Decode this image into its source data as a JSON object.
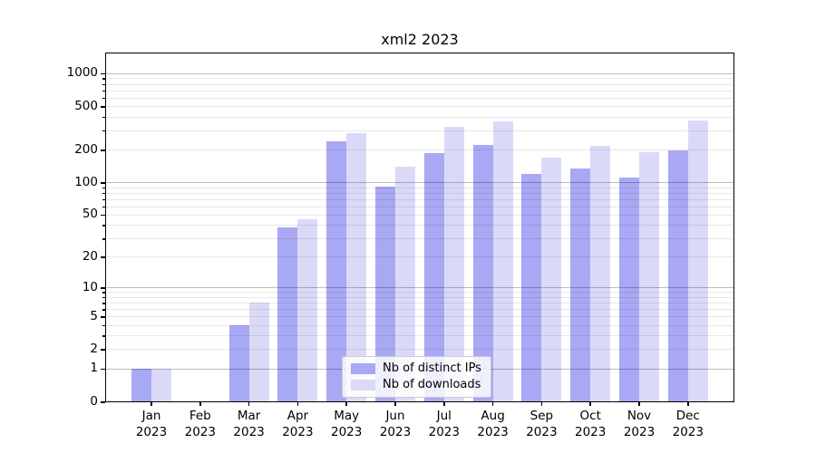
{
  "title": "xml2 2023",
  "colors": {
    "bar_distinct_ips": "#a8a8f4",
    "bar_downloads": "#dadaf8",
    "spine": "#000000",
    "legend_border": "#cccccc"
  },
  "chart_data": {
    "type": "bar",
    "title": "xml2 2023",
    "categories": [
      "Jan 2023",
      "Feb 2023",
      "Mar 2023",
      "Apr 2023",
      "May 2023",
      "Jun 2023",
      "Jul 2023",
      "Aug 2023",
      "Sep 2023",
      "Oct 2023",
      "Nov 2023",
      "Dec 2023"
    ],
    "series": [
      {
        "name": "Nb of distinct IPs",
        "color": "#a8a8f4",
        "values": [
          1,
          0,
          4,
          38,
          240,
          91,
          185,
          220,
          120,
          135,
          110,
          195
        ]
      },
      {
        "name": "Nb of downloads",
        "color": "#dadaf8",
        "values": [
          1,
          0,
          7,
          45,
          285,
          140,
          325,
          360,
          170,
          215,
          190,
          370
        ]
      }
    ],
    "xlabel": "",
    "ylabel": "",
    "yscale": "log1p",
    "ylim": [
      0,
      1520
    ],
    "yticks": [
      0,
      1,
      2,
      5,
      10,
      20,
      50,
      100,
      200,
      500,
      1000
    ],
    "major_gridlines": [
      1,
      10,
      100,
      1000
    ],
    "minor_gridlines": [
      2,
      3,
      4,
      5,
      6,
      7,
      8,
      9,
      20,
      30,
      40,
      50,
      60,
      70,
      80,
      90,
      200,
      300,
      400,
      500,
      600,
      700,
      800,
      900
    ],
    "grid": true,
    "legend_position": "lower center"
  }
}
